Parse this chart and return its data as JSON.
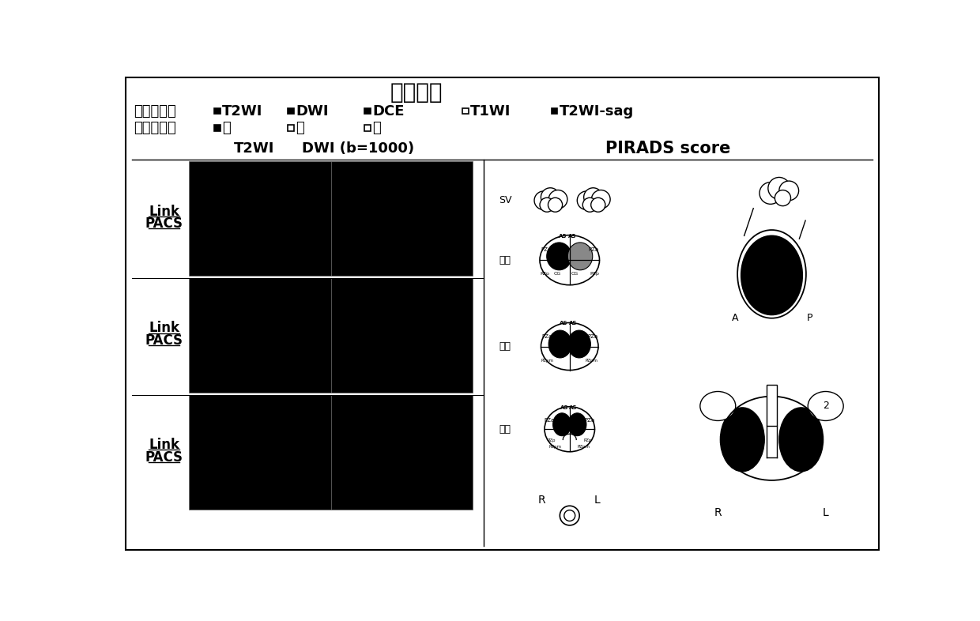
{
  "title": "影像观察",
  "scan_label": "扫描序列：",
  "quality_label": "图像质量：",
  "scan_items": [
    {
      "text": "T2WI",
      "filled": true
    },
    {
      "text": "DWI",
      "filled": true
    },
    {
      "text": "DCE",
      "filled": true
    },
    {
      "text": "T1WI",
      "filled": false
    },
    {
      "text": "T2WI-sag",
      "filled": true
    }
  ],
  "quality_items": [
    {
      "text": "优",
      "filled": true
    },
    {
      "text": "良",
      "filled": false
    },
    {
      "text": "差",
      "filled": false
    }
  ],
  "col1_label": "T2WI",
  "col2_label": "DWI (b=1000)",
  "pirads_label": "PIRADS score",
  "row_labels": [
    "基底",
    "中间",
    "顶点"
  ],
  "sv_label": "SV",
  "rl_label_left": "R",
  "rl_label_right": "L",
  "rl_label_left2": "R",
  "rl_label_right2": "L",
  "ap_label_a": "A",
  "ap_label_p": "P",
  "num_label": "2",
  "bg_color": "#ffffff",
  "black": "#000000"
}
